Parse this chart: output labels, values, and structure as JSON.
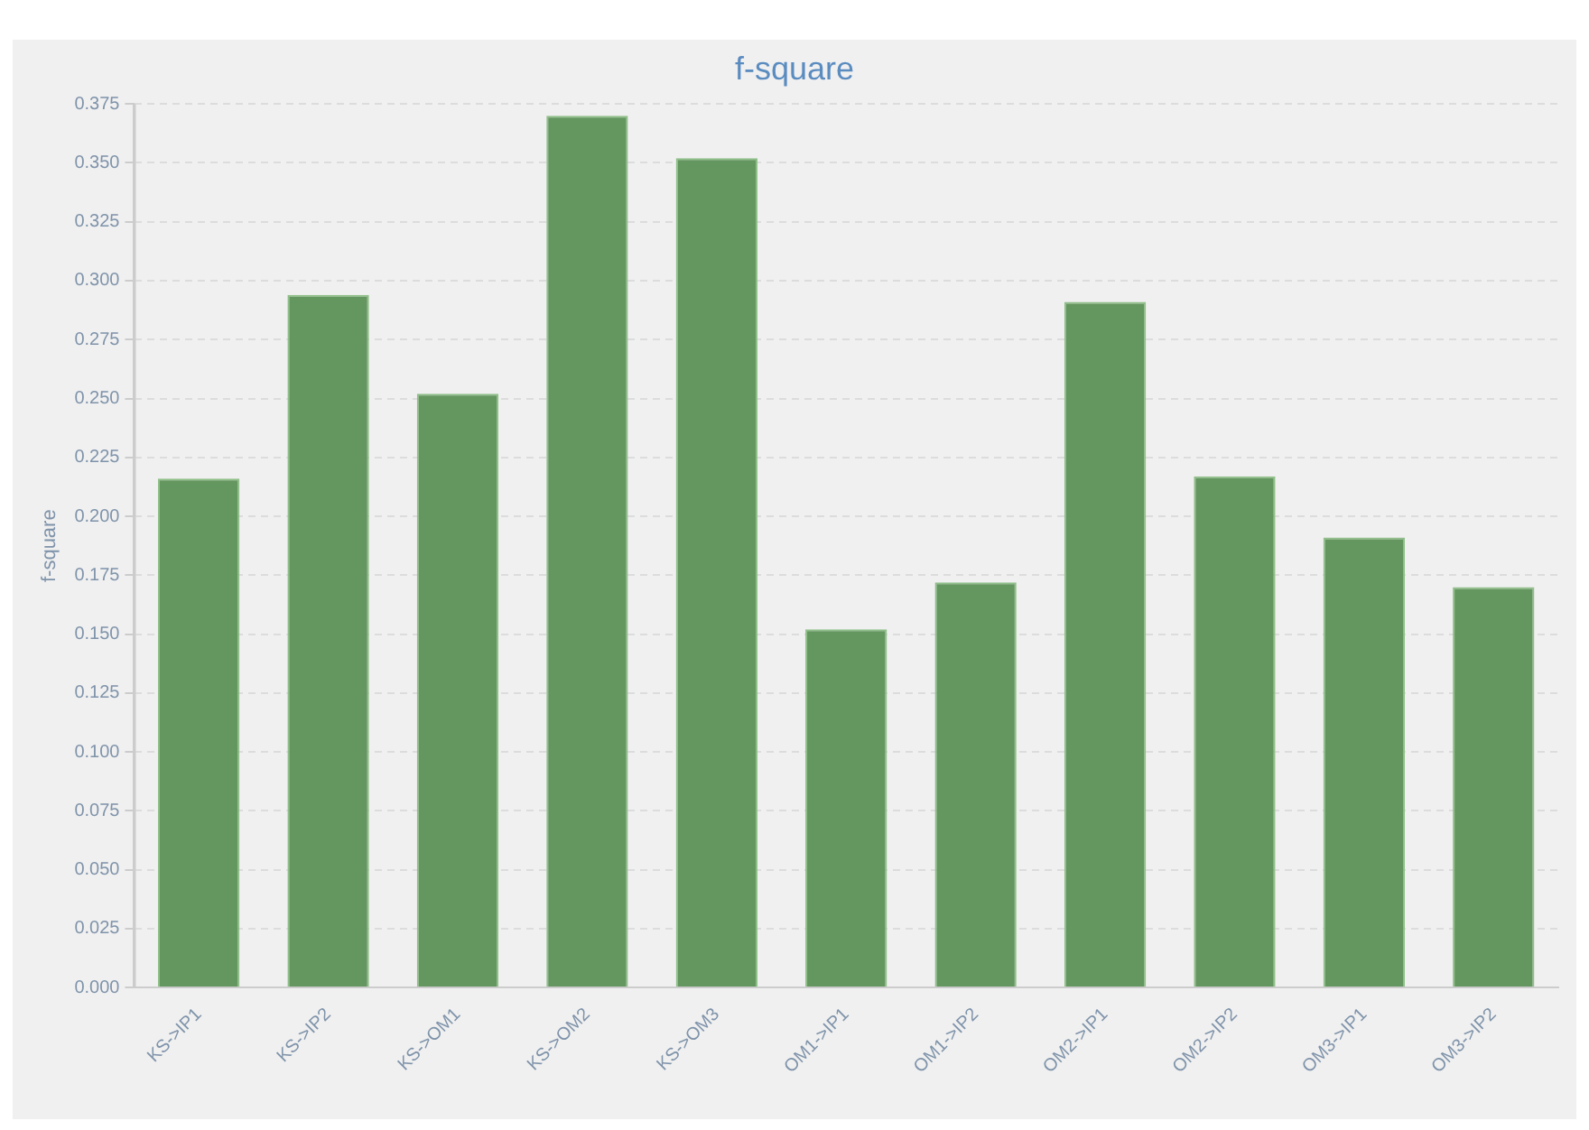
{
  "chart_data": {
    "type": "bar",
    "title": "f-square",
    "ylabel": "f-square",
    "categories": [
      "KS->IP1",
      "KS->IP2",
      "KS->OM1",
      "KS->OM2",
      "KS->OM3",
      "OM1->IP1",
      "OM1->IP2",
      "OM2->IP1",
      "OM2->IP2",
      "OM3->IP1",
      "OM3->IP2"
    ],
    "values": [
      0.216,
      0.294,
      0.252,
      0.37,
      0.352,
      0.152,
      0.172,
      0.291,
      0.217,
      0.191,
      0.17
    ],
    "color": "#64965f",
    "ylim": [
      0,
      0.375
    ],
    "yticks": [
      {
        "value": 0,
        "label": "0.000"
      },
      {
        "value": 0.025,
        "label": "0.025"
      },
      {
        "value": 0.05,
        "label": "0.050"
      },
      {
        "value": 0.075,
        "label": "0.075"
      },
      {
        "value": 0.1,
        "label": "0.100"
      },
      {
        "value": 0.125,
        "label": "0.125"
      },
      {
        "value": 0.15,
        "label": "0.150"
      },
      {
        "value": 0.175,
        "label": "0.175"
      },
      {
        "value": 0.2,
        "label": "0.200"
      },
      {
        "value": 0.225,
        "label": "0.225"
      },
      {
        "value": 0.25,
        "label": "0.250"
      },
      {
        "value": 0.275,
        "label": "0.275"
      },
      {
        "value": 0.3,
        "label": "0.300"
      },
      {
        "value": 0.325,
        "label": "0.325"
      },
      {
        "value": 0.35,
        "label": "0.350"
      },
      {
        "value": 0.375,
        "label": "0.375"
      }
    ],
    "grid": "y",
    "legend": false
  }
}
